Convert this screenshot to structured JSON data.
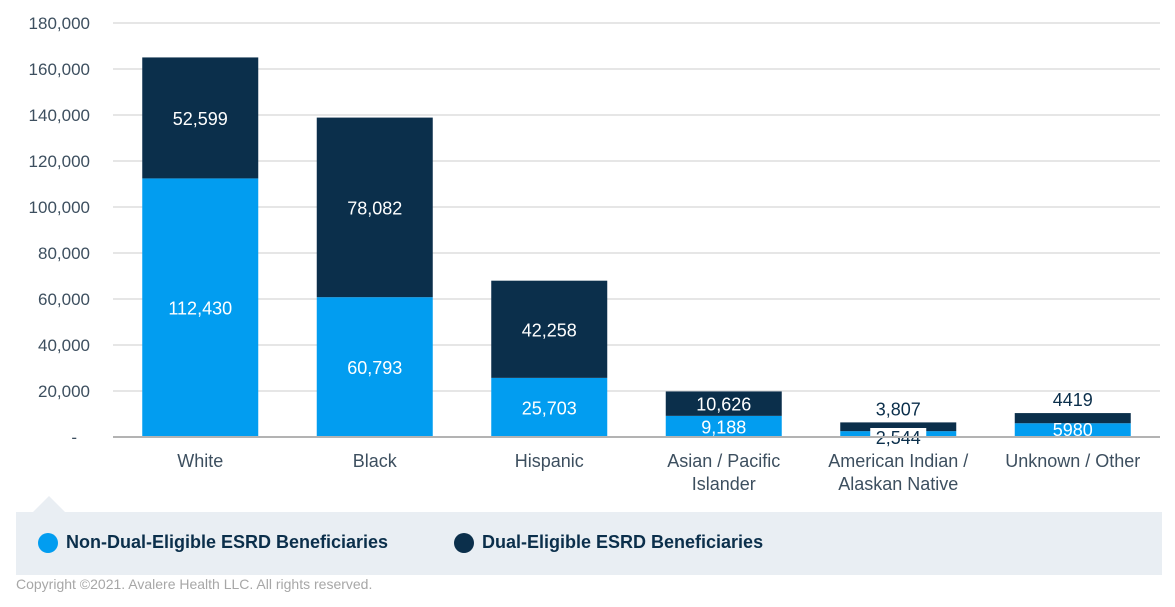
{
  "chart_data": {
    "type": "bar",
    "stacked": true,
    "title": "",
    "xlabel": "",
    "ylabel": "",
    "ylim": [
      0,
      180000
    ],
    "yticks": [
      0,
      20000,
      40000,
      60000,
      80000,
      100000,
      120000,
      140000,
      160000,
      180000
    ],
    "ytick_labels": [
      "-",
      "20,000",
      "40,000",
      "60,000",
      "80,000",
      "100,000",
      "120,000",
      "140,000",
      "160,000",
      "180,000"
    ],
    "grid": true,
    "categories": [
      [
        "White"
      ],
      [
        "Black"
      ],
      [
        "Hispanic"
      ],
      [
        "Asian / Pacific",
        "Islander"
      ],
      [
        "American Indian /",
        "Alaskan Native"
      ],
      [
        "Unknown / Other"
      ]
    ],
    "series": [
      {
        "name": "Non-Dual-Eligible ESRD Beneficiaries",
        "color": "#029df0",
        "values": [
          112430,
          60793,
          25703,
          9188,
          2544,
          5980
        ],
        "labels": [
          "112,430",
          "60,793",
          "25,703",
          "9,188",
          "2,544",
          "5980"
        ]
      },
      {
        "name": "Dual-Eligible ESRD Beneficiaries",
        "color": "#0b2f4b",
        "values": [
          52599,
          78082,
          42258,
          10626,
          3807,
          4419
        ],
        "labels": [
          "52,599",
          "78,082",
          "42,258",
          "10,626",
          "3,807",
          "4419"
        ]
      }
    ],
    "legend_position": "bottom"
  },
  "legend": {
    "items": [
      {
        "label": "Non-Dual-Eligible ESRD Beneficiaries",
        "color": "#029df0"
      },
      {
        "label": "Dual-Eligible ESRD Beneficiaries",
        "color": "#0b2f4b"
      }
    ]
  },
  "footer": {
    "copyright": "Copyright ©2021. Avalere Health LLC. All rights reserved."
  }
}
